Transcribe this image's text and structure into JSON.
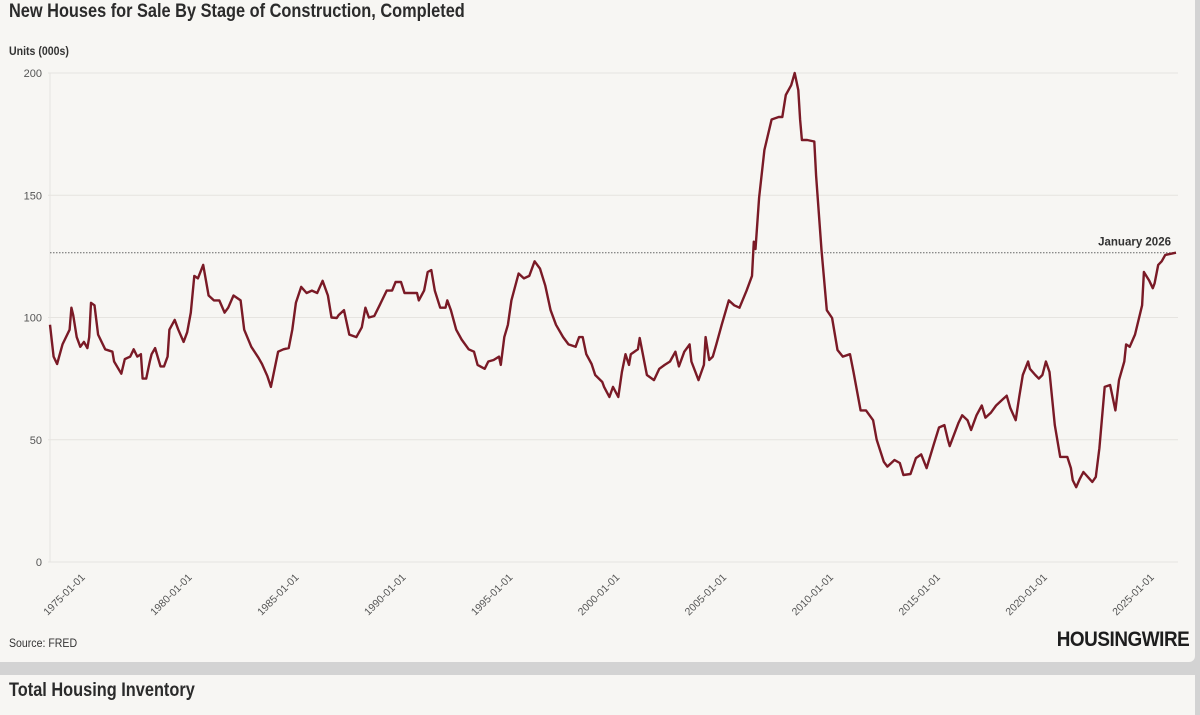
{
  "title": "New Houses for Sale By Stage of Construction, Completed",
  "source": "Source: FRED",
  "logo": "HOUSINGWIRE",
  "next_card_title": "Total Housing Inventory",
  "chart_data": {
    "type": "line",
    "title": "New Houses for Sale By Stage of Construction, Completed",
    "ylabel": "Units (000s)",
    "xlabel": "",
    "ylim": [
      0,
      200
    ],
    "yticks": [
      0,
      50,
      100,
      150,
      200
    ],
    "xticks": [
      "1975-01-01",
      "1980-01-01",
      "1985-01-01",
      "1990-01-01",
      "1995-01-01",
      "2000-01-01",
      "2005-01-01",
      "2010-01-01",
      "2015-01-01",
      "2020-01-01",
      "2025-01-01"
    ],
    "grid": true,
    "line_color": "#7a1a26",
    "annotation": {
      "label": "January 2026",
      "value": 126.5,
      "style": "dotted horizontal reference line"
    },
    "points": [
      [
        "1973-05",
        97
      ],
      [
        "1973-07",
        84
      ],
      [
        "1973-09",
        81
      ],
      [
        "1973-12",
        89
      ],
      [
        "1974-04",
        95
      ],
      [
        "1974-05",
        104
      ],
      [
        "1974-06",
        101
      ],
      [
        "1974-08",
        92
      ],
      [
        "1974-10",
        88
      ],
      [
        "1974-12",
        90
      ],
      [
        "1975-02",
        87.5
      ],
      [
        "1975-03",
        92
      ],
      [
        "1975-04",
        106
      ],
      [
        "1975-06",
        105
      ],
      [
        "1975-08",
        93
      ],
      [
        "1975-12",
        87
      ],
      [
        "1976-04",
        86
      ],
      [
        "1976-05",
        82
      ],
      [
        "1976-09",
        77
      ],
      [
        "1976-11",
        83
      ],
      [
        "1977-02",
        84
      ],
      [
        "1977-04",
        87
      ],
      [
        "1977-06",
        84
      ],
      [
        "1977-08",
        85
      ],
      [
        "1977-09",
        75
      ],
      [
        "1977-11",
        75
      ],
      [
        "1978-01",
        82
      ],
      [
        "1978-02",
        85
      ],
      [
        "1978-04",
        87.5
      ],
      [
        "1978-07",
        80
      ],
      [
        "1978-09",
        80
      ],
      [
        "1978-11",
        84
      ],
      [
        "1978-12",
        95
      ],
      [
        "1979-03",
        99
      ],
      [
        "1979-05",
        95
      ],
      [
        "1979-08",
        90
      ],
      [
        "1979-10",
        94
      ],
      [
        "1979-12",
        102
      ],
      [
        "1980-02",
        117
      ],
      [
        "1980-04",
        116
      ],
      [
        "1980-07",
        121.5
      ],
      [
        "1980-10",
        109
      ],
      [
        "1981-01",
        107
      ],
      [
        "1981-04",
        107
      ],
      [
        "1981-07",
        102
      ],
      [
        "1981-09",
        104
      ],
      [
        "1981-12",
        109
      ],
      [
        "1982-04",
        107
      ],
      [
        "1982-06",
        95
      ],
      [
        "1982-10",
        88
      ],
      [
        "1983-02",
        83.5
      ],
      [
        "1983-04",
        81
      ],
      [
        "1983-07",
        76
      ],
      [
        "1983-09",
        71.6
      ],
      [
        "1984-01",
        86
      ],
      [
        "1984-04",
        87
      ],
      [
        "1984-07",
        87.5
      ],
      [
        "1984-09",
        95
      ],
      [
        "1984-11",
        106
      ],
      [
        "1985-02",
        112.5
      ],
      [
        "1985-05",
        110
      ],
      [
        "1985-08",
        111
      ],
      [
        "1985-11",
        110
      ],
      [
        "1986-02",
        115
      ],
      [
        "1986-05",
        109
      ],
      [
        "1986-07",
        100
      ],
      [
        "1986-10",
        99.8
      ],
      [
        "1986-11",
        101
      ],
      [
        "1987-02",
        103
      ],
      [
        "1987-05",
        93
      ],
      [
        "1987-09",
        92
      ],
      [
        "1987-12",
        96
      ],
      [
        "1988-02",
        104
      ],
      [
        "1988-04",
        100
      ],
      [
        "1988-07",
        100.6
      ],
      [
        "1988-10",
        105
      ],
      [
        "1989-02",
        111
      ],
      [
        "1989-05",
        111
      ],
      [
        "1989-07",
        114.5
      ],
      [
        "1989-10",
        114.5
      ],
      [
        "1989-12",
        110
      ],
      [
        "1990-03",
        110
      ],
      [
        "1990-07",
        110
      ],
      [
        "1990-08",
        107
      ],
      [
        "1990-11",
        111
      ],
      [
        "1991-01",
        118.6
      ],
      [
        "1991-03",
        119.4
      ],
      [
        "1991-05",
        111
      ],
      [
        "1991-08",
        104
      ],
      [
        "1991-11",
        104
      ],
      [
        "1991-12",
        107
      ],
      [
        "1992-02",
        103
      ],
      [
        "1992-05",
        95
      ],
      [
        "1992-08",
        91
      ],
      [
        "1992-12",
        87
      ],
      [
        "1993-03",
        86
      ],
      [
        "1993-05",
        80.6
      ],
      [
        "1993-09",
        79
      ],
      [
        "1993-11",
        82
      ],
      [
        "1994-02",
        82.6
      ],
      [
        "1994-05",
        84
      ],
      [
        "1994-06",
        80.6
      ],
      [
        "1994-08",
        92
      ],
      [
        "1994-10",
        97
      ],
      [
        "1994-12",
        107
      ],
      [
        "1995-04",
        118
      ],
      [
        "1995-07",
        116
      ],
      [
        "1995-10",
        117
      ],
      [
        "1996-01",
        123
      ],
      [
        "1996-04",
        120
      ],
      [
        "1996-07",
        113
      ],
      [
        "1996-10",
        103
      ],
      [
        "1997-01",
        97
      ],
      [
        "1997-05",
        92
      ],
      [
        "1997-08",
        89
      ],
      [
        "1997-12",
        88
      ],
      [
        "1998-02",
        92
      ],
      [
        "1998-04",
        92
      ],
      [
        "1998-06",
        85
      ],
      [
        "1998-09",
        81
      ],
      [
        "1998-11",
        76.5
      ],
      [
        "1999-03",
        73.6
      ],
      [
        "1999-04",
        71.6
      ],
      [
        "1999-07",
        67.5
      ],
      [
        "1999-09",
        71.6
      ],
      [
        "1999-12",
        67.5
      ],
      [
        "2000-02",
        77.7
      ],
      [
        "2000-04",
        85
      ],
      [
        "2000-06",
        80.6
      ],
      [
        "2000-07",
        85
      ],
      [
        "2000-11",
        87
      ],
      [
        "2000-12",
        91.6
      ],
      [
        "2001-04",
        76.5
      ],
      [
        "2001-08",
        74.4
      ],
      [
        "2001-11",
        79
      ],
      [
        "2002-02",
        80.6
      ],
      [
        "2002-05",
        82
      ],
      [
        "2002-08",
        86
      ],
      [
        "2002-10",
        80
      ],
      [
        "2003-01",
        86
      ],
      [
        "2003-04",
        89
      ],
      [
        "2003-05",
        82
      ],
      [
        "2003-09",
        74.4
      ],
      [
        "2003-12",
        80.6
      ],
      [
        "2004-01",
        92
      ],
      [
        "2004-03",
        82.6
      ],
      [
        "2004-05",
        84
      ],
      [
        "2004-07",
        89
      ],
      [
        "2004-10",
        97
      ],
      [
        "2005-02",
        107
      ],
      [
        "2005-05",
        105
      ],
      [
        "2005-08",
        104
      ],
      [
        "2005-12",
        111
      ],
      [
        "2006-03",
        117
      ],
      [
        "2006-04",
        131
      ],
      [
        "2006-05",
        128
      ],
      [
        "2006-07",
        149
      ],
      [
        "2006-10",
        168.5
      ],
      [
        "2007-02",
        181
      ],
      [
        "2007-06",
        182
      ],
      [
        "2007-08",
        182
      ],
      [
        "2007-10",
        191
      ],
      [
        "2008-01",
        195
      ],
      [
        "2008-03",
        200
      ],
      [
        "2008-05",
        193
      ],
      [
        "2008-06",
        181
      ],
      [
        "2008-07",
        172.6
      ],
      [
        "2008-10",
        172.6
      ],
      [
        "2009-02",
        172
      ],
      [
        "2009-03",
        158
      ],
      [
        "2009-06",
        127.6
      ],
      [
        "2009-09",
        103
      ],
      [
        "2009-12",
        99.8
      ],
      [
        "2010-03",
        86.7
      ],
      [
        "2010-06",
        84
      ],
      [
        "2010-10",
        85
      ],
      [
        "2010-12",
        77.7
      ],
      [
        "2011-04",
        62
      ],
      [
        "2011-07",
        62
      ],
      [
        "2011-11",
        58
      ],
      [
        "2012-01",
        50
      ],
      [
        "2012-05",
        41
      ],
      [
        "2012-07",
        39
      ],
      [
        "2012-11",
        41.7
      ],
      [
        "2013-02",
        40.5
      ],
      [
        "2013-04",
        35.6
      ],
      [
        "2013-08",
        36
      ],
      [
        "2013-11",
        42.5
      ],
      [
        "2014-02",
        44
      ],
      [
        "2014-05",
        38.4
      ],
      [
        "2014-09",
        48
      ],
      [
        "2014-12",
        55
      ],
      [
        "2015-03",
        56
      ],
      [
        "2015-05",
        50
      ],
      [
        "2015-06",
        47.4
      ],
      [
        "2015-11",
        57
      ],
      [
        "2016-01",
        60
      ],
      [
        "2016-04",
        58
      ],
      [
        "2016-06",
        54
      ],
      [
        "2016-09",
        60
      ],
      [
        "2016-12",
        64
      ],
      [
        "2017-02",
        59
      ],
      [
        "2017-05",
        61
      ],
      [
        "2017-08",
        64
      ],
      [
        "2017-12",
        66.7
      ],
      [
        "2018-02",
        68
      ],
      [
        "2018-04",
        63
      ],
      [
        "2018-07",
        58
      ],
      [
        "2018-09",
        67.5
      ],
      [
        "2018-11",
        76.5
      ],
      [
        "2019-02",
        82
      ],
      [
        "2019-03",
        79
      ],
      [
        "2019-06",
        76.5
      ],
      [
        "2019-08",
        75
      ],
      [
        "2019-10",
        76.5
      ],
      [
        "2019-12",
        82
      ],
      [
        "2020-02",
        77.7
      ],
      [
        "2020-05",
        56
      ],
      [
        "2020-08",
        43
      ],
      [
        "2020-12",
        43
      ],
      [
        "2021-02",
        38.4
      ],
      [
        "2021-03",
        33.5
      ],
      [
        "2021-05",
        30.6
      ],
      [
        "2021-07",
        34
      ],
      [
        "2021-09",
        36.8
      ],
      [
        "2021-12",
        34.4
      ],
      [
        "2022-02",
        32.7
      ],
      [
        "2022-04",
        34.8
      ],
      [
        "2022-06",
        46.6
      ],
      [
        "2022-09",
        71.6
      ],
      [
        "2022-12",
        72.4
      ],
      [
        "2023-03",
        62
      ],
      [
        "2023-05",
        74.4
      ],
      [
        "2023-08",
        82
      ],
      [
        "2023-09",
        89
      ],
      [
        "2023-11",
        88
      ],
      [
        "2024-02",
        93
      ],
      [
        "2024-06",
        105
      ],
      [
        "2024-07",
        118.6
      ],
      [
        "2024-10",
        115
      ],
      [
        "2024-12",
        112
      ],
      [
        "2025-01",
        114
      ],
      [
        "2025-03",
        121.5
      ],
      [
        "2025-05",
        123
      ],
      [
        "2025-07",
        125.6
      ],
      [
        "2026-01",
        126.5
      ]
    ]
  }
}
